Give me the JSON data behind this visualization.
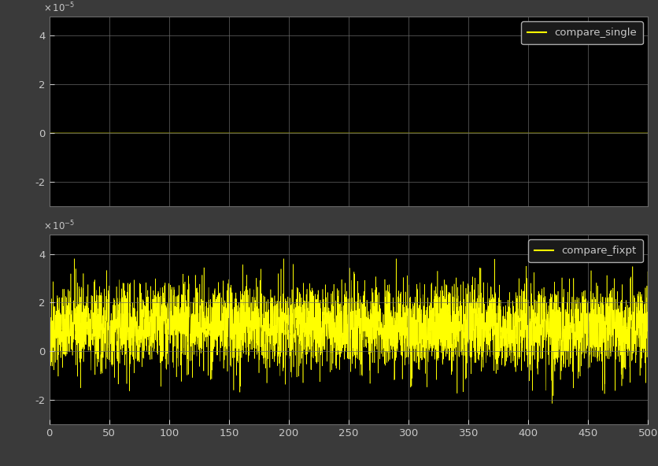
{
  "background_color": "#3a3a3a",
  "axes_bg_color": "#000000",
  "grid_color": "#6a6a6a",
  "line_color": "#ffff00",
  "text_color": "#c8c8c8",
  "legend_bg_color": "#1a1a1a",
  "legend_edge_color": "#aaaaaa",
  "top_legend_label": "compare_single",
  "bottom_legend_label": "compare_fixpt",
  "xlim": [
    0,
    500
  ],
  "ylim": [
    -3e-05,
    4.8e-05
  ],
  "yticks": [
    -2e-05,
    0,
    2e-05,
    4e-05
  ],
  "xticks": [
    0,
    50,
    100,
    150,
    200,
    250,
    300,
    350,
    400,
    450,
    500
  ],
  "n_samples": 5000,
  "noise_seed": 42
}
